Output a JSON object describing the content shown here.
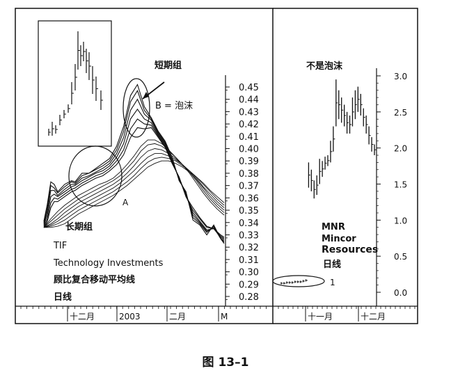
{
  "figure": {
    "caption": "图 13–1"
  },
  "chart_data": [
    {
      "type": "line",
      "subtitle_lines": [
        "TIF",
        "Technology Investments",
        "顾比复合移动平均线",
        "日线"
      ],
      "annotations": {
        "short_group": "短期组",
        "long_group": "长期组",
        "bubble": "B = 泡沫",
        "point_a": "A"
      },
      "y_axis": {
        "ticks": [
          0.45,
          0.44,
          0.43,
          0.42,
          0.41,
          0.4,
          0.39,
          0.38,
          0.37,
          0.36,
          0.35,
          0.34,
          0.33,
          0.32,
          0.31,
          0.3,
          0.29,
          0.28
        ],
        "tick_labels": [
          "0.45",
          "0.44",
          "0.43",
          "0.42",
          "0.41",
          "0.40",
          "0.39",
          "0.38",
          "0.37",
          "0.36",
          "0.35",
          "0.34",
          "0.33",
          "0.32",
          "0.31",
          "0.30",
          "0.29",
          "0.28"
        ]
      },
      "x_axis": {
        "labels": [
          "十二月",
          "2003",
          "二月",
          "M"
        ]
      },
      "guppy_series": [
        {
          "group": "short",
          "x": [
            0,
            5,
            10,
            15,
            20,
            30,
            40,
            45,
            55,
            65,
            75,
            85,
            95,
            105,
            115,
            125,
            135,
            145,
            155,
            165,
            175,
            185,
            195,
            205,
            215,
            225,
            235,
            245,
            255,
            260
          ],
          "y": [
            0.341,
            0.355,
            0.373,
            0.371,
            0.365,
            0.371,
            0.374,
            0.373,
            0.38,
            0.38,
            0.384,
            0.388,
            0.392,
            0.402,
            0.418,
            0.443,
            0.452,
            0.434,
            0.425,
            0.414,
            0.406,
            0.393,
            0.374,
            0.365,
            0.342,
            0.338,
            0.33,
            0.338,
            0.327,
            0.323
          ]
        },
        {
          "group": "short",
          "x": [
            0,
            5,
            10,
            15,
            20,
            30,
            40,
            45,
            55,
            65,
            75,
            85,
            95,
            105,
            115,
            125,
            135,
            145,
            155,
            165,
            175,
            185,
            195,
            205,
            215,
            225,
            235,
            245,
            255,
            260
          ],
          "y": [
            0.34,
            0.352,
            0.37,
            0.368,
            0.364,
            0.369,
            0.373,
            0.372,
            0.378,
            0.38,
            0.383,
            0.386,
            0.39,
            0.399,
            0.414,
            0.438,
            0.447,
            0.431,
            0.424,
            0.413,
            0.405,
            0.391,
            0.375,
            0.364,
            0.344,
            0.339,
            0.332,
            0.337,
            0.327,
            0.324
          ]
        },
        {
          "group": "short",
          "x": [
            0,
            5,
            10,
            15,
            20,
            30,
            40,
            45,
            55,
            65,
            75,
            85,
            95,
            105,
            115,
            125,
            135,
            145,
            155,
            165,
            175,
            185,
            195,
            205,
            215,
            225,
            235,
            245,
            255,
            260
          ],
          "y": [
            0.339,
            0.349,
            0.366,
            0.366,
            0.362,
            0.367,
            0.371,
            0.371,
            0.376,
            0.378,
            0.381,
            0.384,
            0.388,
            0.396,
            0.409,
            0.431,
            0.44,
            0.428,
            0.423,
            0.412,
            0.404,
            0.39,
            0.376,
            0.363,
            0.346,
            0.34,
            0.333,
            0.336,
            0.327,
            0.325
          ]
        },
        {
          "group": "short",
          "x": [
            0,
            5,
            10,
            15,
            20,
            30,
            40,
            45,
            55,
            65,
            75,
            85,
            95,
            105,
            115,
            125,
            135,
            145,
            155,
            165,
            175,
            185,
            195,
            205,
            215,
            225,
            235,
            245,
            255,
            260
          ],
          "y": [
            0.338,
            0.346,
            0.361,
            0.363,
            0.361,
            0.365,
            0.369,
            0.37,
            0.374,
            0.377,
            0.38,
            0.382,
            0.386,
            0.393,
            0.404,
            0.424,
            0.432,
            0.424,
            0.421,
            0.411,
            0.403,
            0.389,
            0.376,
            0.362,
            0.348,
            0.341,
            0.334,
            0.335,
            0.328,
            0.326
          ]
        },
        {
          "group": "short",
          "x": [
            0,
            5,
            10,
            15,
            20,
            30,
            40,
            45,
            55,
            65,
            75,
            85,
            95,
            105,
            115,
            125,
            135,
            145,
            155,
            165,
            175,
            185,
            195,
            205,
            215,
            225,
            235,
            245,
            255,
            260
          ],
          "y": [
            0.337,
            0.343,
            0.356,
            0.36,
            0.359,
            0.363,
            0.367,
            0.368,
            0.372,
            0.375,
            0.378,
            0.38,
            0.384,
            0.39,
            0.399,
            0.416,
            0.424,
            0.42,
            0.419,
            0.41,
            0.402,
            0.388,
            0.377,
            0.361,
            0.35,
            0.343,
            0.336,
            0.335,
            0.329,
            0.327
          ]
        },
        {
          "group": "short",
          "x": [
            0,
            5,
            10,
            15,
            20,
            30,
            40,
            45,
            55,
            65,
            75,
            85,
            95,
            105,
            115,
            125,
            135,
            145,
            155,
            165,
            175,
            185,
            195,
            205,
            215,
            225,
            235,
            245,
            255,
            260
          ],
          "y": [
            0.336,
            0.341,
            0.352,
            0.357,
            0.357,
            0.361,
            0.365,
            0.366,
            0.37,
            0.373,
            0.376,
            0.378,
            0.382,
            0.387,
            0.395,
            0.409,
            0.417,
            0.416,
            0.417,
            0.409,
            0.401,
            0.388,
            0.377,
            0.361,
            0.352,
            0.344,
            0.337,
            0.335,
            0.33,
            0.328
          ]
        },
        {
          "group": "long",
          "x": [
            0,
            10,
            20,
            30,
            40,
            50,
            60,
            70,
            80,
            90,
            100,
            110,
            120,
            130,
            140,
            150,
            160,
            170,
            180,
            190,
            200,
            210,
            220,
            230,
            240,
            250,
            260
          ],
          "y": [
            0.336,
            0.343,
            0.349,
            0.354,
            0.358,
            0.362,
            0.365,
            0.368,
            0.371,
            0.373,
            0.376,
            0.381,
            0.387,
            0.394,
            0.402,
            0.407,
            0.407,
            0.404,
            0.399,
            0.393,
            0.387,
            0.38,
            0.372,
            0.364,
            0.357,
            0.351,
            0.346
          ]
        },
        {
          "group": "long",
          "x": [
            0,
            10,
            20,
            30,
            40,
            50,
            60,
            70,
            80,
            90,
            100,
            110,
            120,
            130,
            140,
            150,
            160,
            170,
            180,
            190,
            200,
            210,
            220,
            230,
            240,
            250,
            260
          ],
          "y": [
            0.336,
            0.341,
            0.346,
            0.351,
            0.355,
            0.359,
            0.362,
            0.365,
            0.368,
            0.371,
            0.374,
            0.378,
            0.384,
            0.39,
            0.398,
            0.403,
            0.404,
            0.402,
            0.398,
            0.393,
            0.387,
            0.381,
            0.374,
            0.366,
            0.359,
            0.353,
            0.348
          ]
        },
        {
          "group": "long",
          "x": [
            0,
            10,
            20,
            30,
            40,
            50,
            60,
            70,
            80,
            90,
            100,
            110,
            120,
            130,
            140,
            150,
            160,
            170,
            180,
            190,
            200,
            210,
            220,
            230,
            240,
            250,
            260
          ],
          "y": [
            0.336,
            0.339,
            0.343,
            0.348,
            0.352,
            0.356,
            0.359,
            0.362,
            0.365,
            0.368,
            0.371,
            0.375,
            0.38,
            0.386,
            0.393,
            0.398,
            0.4,
            0.399,
            0.396,
            0.392,
            0.387,
            0.381,
            0.375,
            0.368,
            0.361,
            0.355,
            0.35
          ]
        },
        {
          "group": "long",
          "x": [
            0,
            10,
            20,
            30,
            40,
            50,
            60,
            70,
            80,
            90,
            100,
            110,
            120,
            130,
            140,
            150,
            160,
            170,
            180,
            190,
            200,
            210,
            220,
            230,
            240,
            250,
            260
          ],
          "y": [
            0.336,
            0.338,
            0.341,
            0.345,
            0.349,
            0.353,
            0.356,
            0.359,
            0.362,
            0.365,
            0.368,
            0.372,
            0.377,
            0.382,
            0.388,
            0.393,
            0.396,
            0.396,
            0.394,
            0.391,
            0.387,
            0.382,
            0.376,
            0.369,
            0.363,
            0.357,
            0.352
          ]
        },
        {
          "group": "long",
          "x": [
            0,
            10,
            20,
            30,
            40,
            50,
            60,
            70,
            80,
            90,
            100,
            110,
            120,
            130,
            140,
            150,
            160,
            170,
            180,
            190,
            200,
            210,
            220,
            230,
            240,
            250,
            260
          ],
          "y": [
            0.336,
            0.337,
            0.339,
            0.342,
            0.346,
            0.35,
            0.353,
            0.356,
            0.359,
            0.362,
            0.365,
            0.369,
            0.373,
            0.378,
            0.384,
            0.389,
            0.392,
            0.393,
            0.392,
            0.39,
            0.386,
            0.382,
            0.377,
            0.371,
            0.365,
            0.359,
            0.354
          ]
        },
        {
          "group": "long",
          "x": [
            0,
            10,
            20,
            30,
            40,
            50,
            60,
            70,
            80,
            90,
            100,
            110,
            120,
            130,
            140,
            150,
            160,
            170,
            180,
            190,
            200,
            210,
            220,
            230,
            240,
            250,
            260
          ],
          "y": [
            0.336,
            0.336,
            0.337,
            0.339,
            0.343,
            0.347,
            0.35,
            0.353,
            0.356,
            0.359,
            0.362,
            0.366,
            0.37,
            0.375,
            0.38,
            0.385,
            0.388,
            0.39,
            0.39,
            0.388,
            0.385,
            0.381,
            0.377,
            0.372,
            0.366,
            0.361,
            0.356
          ]
        }
      ]
    },
    {
      "type": "bar",
      "title": "不是泡沫",
      "labels": [
        "MNR",
        "Mincor",
        "Resources",
        "日线"
      ],
      "annotation": "1",
      "y_axis": {
        "ticks": [
          3.0,
          2.5,
          2.0,
          1.5,
          1.0,
          0.5,
          0.0
        ],
        "tick_labels": [
          "3.0",
          "2.5",
          "2.0",
          "1.5",
          "1.0",
          "0.5",
          "0.0"
        ]
      },
      "x_axis": {
        "labels": [
          "十一月",
          "十二月"
        ]
      },
      "price_bars": [
        {
          "x": 0,
          "high": 0.14,
          "low": 0.11
        },
        {
          "x": 1,
          "high": 0.14,
          "low": 0.11
        },
        {
          "x": 2,
          "high": 0.15,
          "low": 0.12
        },
        {
          "x": 3,
          "high": 0.15,
          "low": 0.12
        },
        {
          "x": 4,
          "high": 0.15,
          "low": 0.12
        },
        {
          "x": 5,
          "high": 0.16,
          "low": 0.13
        },
        {
          "x": 6,
          "high": 0.16,
          "low": 0.13
        },
        {
          "x": 7,
          "high": 0.16,
          "low": 0.13
        },
        {
          "x": 8,
          "high": 0.17,
          "low": 0.14
        },
        {
          "x": 9,
          "high": 0.18,
          "low": 0.15
        },
        {
          "x": 10,
          "high": 1.8,
          "low": 1.45
        },
        {
          "x": 11,
          "high": 1.7,
          "low": 1.4
        },
        {
          "x": 12,
          "high": 1.55,
          "low": 1.3
        },
        {
          "x": 13,
          "high": 1.62,
          "low": 1.35
        },
        {
          "x": 14,
          "high": 1.85,
          "low": 1.5
        },
        {
          "x": 15,
          "high": 1.82,
          "low": 1.6
        },
        {
          "x": 16,
          "high": 1.88,
          "low": 1.7
        },
        {
          "x": 17,
          "high": 1.9,
          "low": 1.75
        },
        {
          "x": 18,
          "high": 2.1,
          "low": 1.8
        },
        {
          "x": 19,
          "high": 2.3,
          "low": 1.95
        },
        {
          "x": 20,
          "high": 2.95,
          "low": 2.3
        },
        {
          "x": 21,
          "high": 2.8,
          "low": 2.4
        },
        {
          "x": 22,
          "high": 2.7,
          "low": 2.35
        },
        {
          "x": 23,
          "high": 2.6,
          "low": 2.3
        },
        {
          "x": 24,
          "high": 2.5,
          "low": 2.2
        },
        {
          "x": 25,
          "high": 2.45,
          "low": 2.2
        },
        {
          "x": 26,
          "high": 2.7,
          "low": 2.3
        },
        {
          "x": 27,
          "high": 2.8,
          "low": 2.4
        },
        {
          "x": 28,
          "high": 2.85,
          "low": 2.5
        },
        {
          "x": 29,
          "high": 2.75,
          "low": 2.45
        },
        {
          "x": 30,
          "high": 2.55,
          "low": 2.3
        },
        {
          "x": 31,
          "high": 2.45,
          "low": 2.2
        },
        {
          "x": 32,
          "high": 2.3,
          "low": 2.05
        },
        {
          "x": 33,
          "high": 2.15,
          "low": 1.95
        },
        {
          "x": 34,
          "high": 2.05,
          "low": 1.9
        }
      ]
    }
  ]
}
